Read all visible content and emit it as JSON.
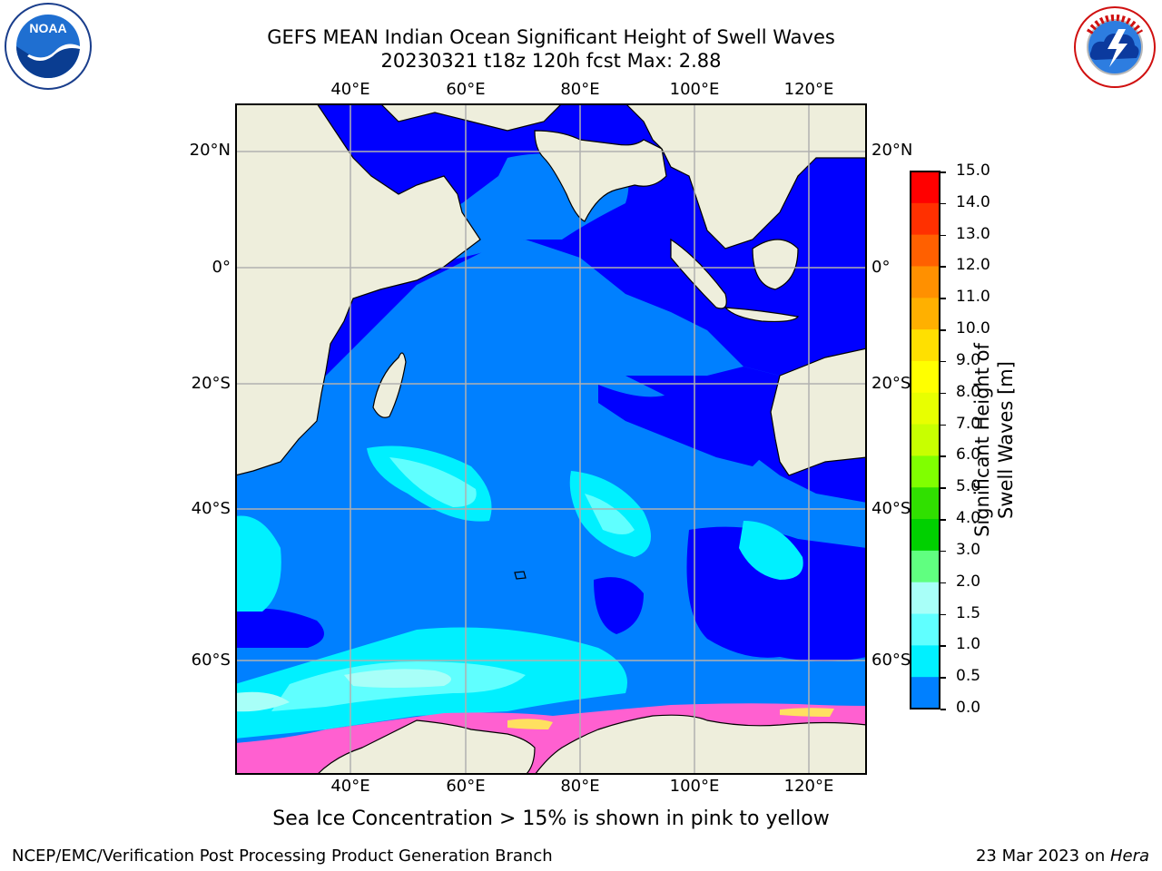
{
  "title": {
    "line1": "GEFS MEAN Indian Ocean Significant Height of Swell Waves",
    "line2": "20230321 t18z 120h fcst   Max: 2.88"
  },
  "map": {
    "lon_labels": [
      "40°E",
      "60°E",
      "80°E",
      "100°E",
      "120°E"
    ],
    "lat_labels": [
      "20°N",
      "0°",
      "20°S",
      "40°S",
      "60°S"
    ],
    "colors": {
      "land": "#eeeedc",
      "grid": "#b0b0b0",
      "deep_blue": "#0000ff",
      "mid_blue": "#0080ff",
      "cyan": "#00f0ff",
      "light_cyan": "#60ffff",
      "pale_cyan": "#a8fff8",
      "ice_pink": "#ff60d0",
      "ice_yellow": "#ffe060"
    }
  },
  "colorbar": {
    "title": "Significant Height of Swell Waves [m]",
    "ticks": [
      "15.0",
      "14.0",
      "13.0",
      "12.0",
      "11.0",
      "10.0",
      "9.0",
      "8.0",
      "7.0",
      "6.0",
      "5.0",
      "4.0",
      "3.0",
      "2.0",
      "1.5",
      "1.0",
      "0.5",
      "0.0"
    ],
    "colors": [
      "#ff0000",
      "#ff3000",
      "#ff6000",
      "#ff9000",
      "#ffb000",
      "#ffe000",
      "#ffff00",
      "#e8ff00",
      "#c8ff00",
      "#80ff00",
      "#30e000",
      "#00d000",
      "#60ff80",
      "#a8fff8",
      "#60ffff",
      "#00f0ff",
      "#0080ff",
      "#0000ff"
    ]
  },
  "note": "Sea Ice Concentration > 15% is shown in pink to yellow",
  "footer": {
    "left": "NCEP/EMC/Verification Post Processing Product Generation Branch",
    "date": "23 Mar 2023 on ",
    "machine": "Hera"
  },
  "logos": {
    "left": "NOAA",
    "right": "NATIONAL WEATHER SERVICE"
  }
}
